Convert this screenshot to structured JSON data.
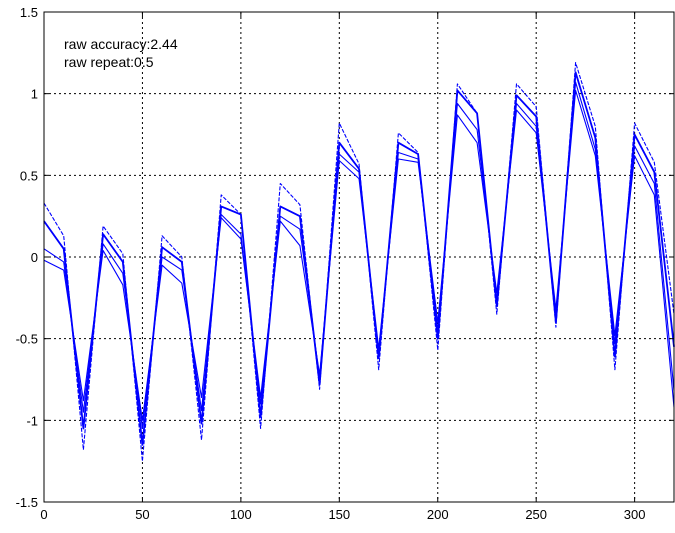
{
  "chart_data": {
    "type": "line",
    "title": "",
    "xlabel": "",
    "ylabel": "",
    "xlim": [
      0,
      320
    ],
    "ylim": [
      -1.5,
      1.5
    ],
    "xticks": [
      0,
      50,
      100,
      150,
      200,
      250,
      300
    ],
    "yticks": [
      -1.5,
      -1,
      -0.5,
      0,
      0.5,
      1,
      1.5
    ],
    "xtick_labels": [
      "0",
      "50",
      "100",
      "150",
      "200",
      "250",
      "300"
    ],
    "ytick_labels": [
      "-1.5",
      "-1",
      "-0.5",
      "0",
      "0.5",
      "1",
      "1.5"
    ],
    "grid": true,
    "grid_style": "dotted",
    "line_color": "#0000ff",
    "annotations": [
      "raw accuracy:2.44",
      "raw repeat:0.5"
    ],
    "x": [
      0,
      10,
      20,
      30,
      40,
      50,
      60,
      70,
      80,
      90,
      100,
      110,
      120,
      130,
      140,
      150,
      160,
      170,
      180,
      190,
      200,
      210,
      220,
      230,
      240,
      250,
      260,
      270,
      280,
      290,
      300,
      310,
      320
    ],
    "series": [
      {
        "values": [
          0.33,
          0.13,
          -1.18,
          0.19,
          0.02,
          -1.25,
          0.13,
          0.0,
          -1.12,
          0.38,
          0.26,
          -1.05,
          0.45,
          0.32,
          -0.81,
          0.82,
          0.57,
          -0.69,
          0.76,
          0.64,
          -0.57,
          1.06,
          0.88,
          -0.35,
          1.06,
          0.92,
          -0.43,
          1.19,
          0.8,
          -0.69,
          0.82,
          0.58,
          -0.35
        ]
      },
      {
        "values": [
          0.22,
          0.05,
          -1.05,
          0.14,
          -0.03,
          -1.15,
          0.06,
          -0.03,
          -1.02,
          0.31,
          0.26,
          -0.98,
          0.31,
          0.25,
          -0.78,
          0.7,
          0.54,
          -0.62,
          0.7,
          0.63,
          -0.5,
          1.02,
          0.88,
          -0.3,
          0.99,
          0.86,
          -0.4,
          1.13,
          0.73,
          -0.61,
          0.75,
          0.52,
          -0.55
        ]
      },
      {
        "values": [
          0.05,
          -0.03,
          -0.95,
          0.08,
          -0.1,
          -1.05,
          0.0,
          -0.08,
          -0.94,
          0.26,
          0.14,
          -0.9,
          0.25,
          0.17,
          -0.74,
          0.63,
          0.52,
          -0.6,
          0.64,
          0.6,
          -0.45,
          0.94,
          0.78,
          -0.26,
          0.94,
          0.8,
          -0.36,
          1.07,
          0.66,
          -0.53,
          0.68,
          0.45,
          -0.82
        ]
      },
      {
        "values": [
          -0.02,
          -0.08,
          -0.88,
          0.04,
          -0.17,
          -1.0,
          -0.05,
          -0.16,
          -0.86,
          0.24,
          0.11,
          -0.86,
          0.22,
          0.07,
          -0.72,
          0.59,
          0.48,
          -0.56,
          0.6,
          0.58,
          -0.4,
          0.87,
          0.7,
          -0.22,
          0.9,
          0.76,
          -0.32,
          1.02,
          0.62,
          -0.48,
          0.62,
          0.38,
          -0.92
        ]
      }
    ]
  }
}
